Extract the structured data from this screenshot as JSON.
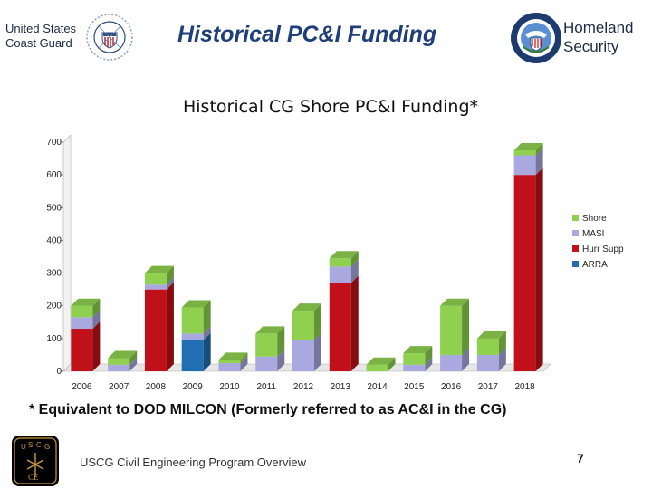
{
  "header": {
    "left_line1": "United States",
    "left_line2": "Coast Guard",
    "title": "Historical PC&I Funding",
    "right_line1": "Homeland",
    "right_line2": "Security"
  },
  "chart_data": {
    "type": "bar",
    "stacked": true,
    "title": "Historical CG Shore PC&I Funding*",
    "categories": [
      "2006",
      "2007",
      "2008",
      "2009",
      "2010",
      "2011",
      "2012",
      "2013",
      "2014",
      "2015",
      "2016",
      "2017",
      "2018"
    ],
    "ylim": [
      0,
      700
    ],
    "yticks": [
      0,
      100,
      200,
      300,
      400,
      500,
      600,
      700
    ],
    "series": [
      {
        "name": "ARRA",
        "color": "#1f6fb2",
        "values": [
          0,
          0,
          0,
          95,
          0,
          0,
          0,
          0,
          0,
          0,
          0,
          0,
          0
        ]
      },
      {
        "name": "Hurr Supp",
        "color": "#c0111a",
        "values": [
          130,
          0,
          250,
          0,
          0,
          0,
          0,
          270,
          0,
          0,
          0,
          0,
          600
        ]
      },
      {
        "name": "MASI",
        "color": "#a9a9e0",
        "values": [
          35,
          20,
          15,
          20,
          25,
          45,
          95,
          50,
          0,
          20,
          50,
          50,
          60
        ]
      },
      {
        "name": "Shore",
        "color": "#8fd14f",
        "values": [
          35,
          20,
          35,
          80,
          10,
          70,
          90,
          25,
          20,
          35,
          150,
          50,
          15
        ]
      }
    ],
    "legend_order": [
      "Shore",
      "MASI",
      "Hurr Supp",
      "ARRA"
    ],
    "legend_position": "right",
    "grid": false
  },
  "note": "* Equivalent to DOD MILCON (Formerly referred to as AC&I in the CG)",
  "footer": {
    "program": "USCG Civil Engineering Program Overview",
    "page": "7",
    "logo_letters": [
      "U",
      "S",
      "C",
      "G",
      "CE"
    ]
  }
}
